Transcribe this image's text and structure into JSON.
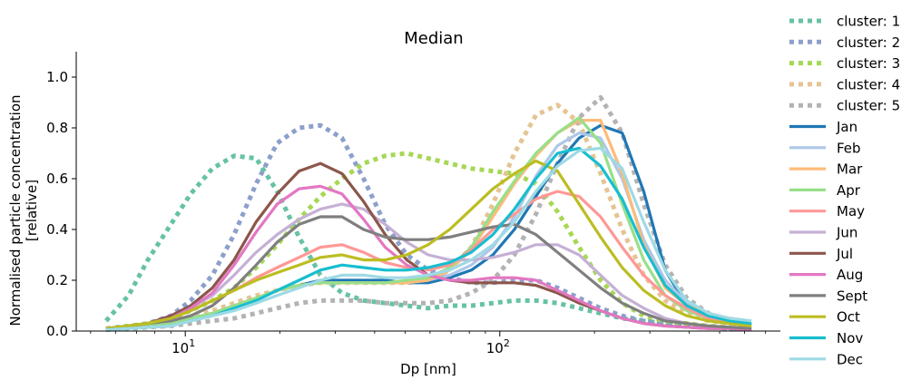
{
  "chart_data": {
    "type": "line",
    "title": "Median",
    "xlabel": "Dp [nm]",
    "ylabel_line1": "Normalised particle concentration",
    "ylabel_line2": "[relative]",
    "xscale": "log",
    "xlim": [
      4.5,
      780
    ],
    "ylim": [
      0,
      1.1
    ],
    "xticks": [
      {
        "value": 10,
        "base": "10",
        "exp": "1"
      },
      {
        "value": 100,
        "base": "10",
        "exp": "2"
      }
    ],
    "yticks": [
      {
        "value": 0.0,
        "label": "0.0"
      },
      {
        "value": 0.2,
        "label": "0.2"
      },
      {
        "value": 0.4,
        "label": "0.4"
      },
      {
        "value": 0.6,
        "label": "0.6"
      },
      {
        "value": 0.8,
        "label": "0.8"
      },
      {
        "value": 1.0,
        "label": "1.0"
      }
    ],
    "legend": {
      "placement": "outside-right"
    },
    "x": [
      5.6,
      6.6,
      7.6,
      9,
      10.4,
      12.2,
      14.3,
      16.8,
      19.6,
      23,
      26.9,
      31.5,
      36.9,
      43.2,
      50.6,
      59.2,
      69.3,
      81.2,
      95.1,
      111.3,
      130.3,
      152.6,
      178.7,
      209.2,
      245,
      286.8,
      335.8,
      393.2,
      460.4,
      539,
      631
    ],
    "series": [
      {
        "name": "cluster: 1",
        "color": "#66c2a5",
        "dotted": true,
        "values": [
          0.04,
          0.14,
          0.28,
          0.42,
          0.54,
          0.64,
          0.69,
          0.68,
          0.55,
          0.37,
          0.22,
          0.15,
          0.12,
          0.11,
          0.1,
          0.09,
          0.1,
          0.1,
          0.11,
          0.12,
          0.12,
          0.11,
          0.09,
          0.07,
          0.05,
          0.04,
          0.03,
          0.02,
          0.015,
          0.01,
          0.01
        ]
      },
      {
        "name": "cluster: 2",
        "color": "#8da0cb",
        "dotted": true,
        "values": [
          0.01,
          0.02,
          0.03,
          0.06,
          0.12,
          0.22,
          0.38,
          0.58,
          0.74,
          0.8,
          0.81,
          0.76,
          0.6,
          0.42,
          0.3,
          0.24,
          0.21,
          0.19,
          0.19,
          0.2,
          0.2,
          0.17,
          0.13,
          0.09,
          0.06,
          0.04,
          0.03,
          0.02,
          0.015,
          0.01,
          0.01
        ]
      },
      {
        "name": "cluster: 3",
        "color": "#a6d854",
        "dotted": true,
        "values": [
          0.01,
          0.02,
          0.03,
          0.05,
          0.08,
          0.12,
          0.17,
          0.25,
          0.34,
          0.44,
          0.53,
          0.6,
          0.66,
          0.69,
          0.7,
          0.68,
          0.66,
          0.64,
          0.63,
          0.62,
          0.58,
          0.47,
          0.33,
          0.2,
          0.11,
          0.06,
          0.04,
          0.03,
          0.02,
          0.015,
          0.01
        ]
      },
      {
        "name": "cluster: 4",
        "color": "#e5c494",
        "dotted": true,
        "values": [
          0.01,
          0.015,
          0.02,
          0.03,
          0.05,
          0.08,
          0.11,
          0.14,
          0.16,
          0.18,
          0.19,
          0.19,
          0.19,
          0.19,
          0.19,
          0.2,
          0.24,
          0.33,
          0.5,
          0.7,
          0.85,
          0.89,
          0.82,
          0.62,
          0.4,
          0.22,
          0.12,
          0.07,
          0.04,
          0.03,
          0.02
        ]
      },
      {
        "name": "cluster: 5",
        "color": "#b3b3b3",
        "dotted": true,
        "values": [
          0.005,
          0.01,
          0.015,
          0.02,
          0.03,
          0.04,
          0.05,
          0.07,
          0.09,
          0.11,
          0.12,
          0.12,
          0.12,
          0.11,
          0.11,
          0.11,
          0.12,
          0.15,
          0.2,
          0.3,
          0.46,
          0.66,
          0.84,
          0.92,
          0.78,
          0.5,
          0.26,
          0.13,
          0.07,
          0.04,
          0.02
        ]
      },
      {
        "name": "Jan",
        "color": "#1f77b4",
        "dotted": false,
        "values": [
          0.01,
          0.015,
          0.02,
          0.03,
          0.05,
          0.07,
          0.1,
          0.13,
          0.16,
          0.18,
          0.2,
          0.2,
          0.2,
          0.2,
          0.19,
          0.19,
          0.21,
          0.24,
          0.3,
          0.4,
          0.53,
          0.66,
          0.76,
          0.81,
          0.78,
          0.55,
          0.24,
          0.1,
          0.06,
          0.04,
          0.03
        ]
      },
      {
        "name": "Feb",
        "color": "#aec7e8",
        "dotted": false,
        "values": [
          0.01,
          0.015,
          0.02,
          0.03,
          0.05,
          0.07,
          0.1,
          0.13,
          0.16,
          0.18,
          0.19,
          0.19,
          0.19,
          0.19,
          0.19,
          0.2,
          0.22,
          0.26,
          0.33,
          0.45,
          0.61,
          0.73,
          0.78,
          0.76,
          0.6,
          0.36,
          0.2,
          0.11,
          0.07,
          0.05,
          0.04
        ]
      },
      {
        "name": "Mar",
        "color": "#ffbb78",
        "dotted": false,
        "values": [
          0.01,
          0.015,
          0.02,
          0.03,
          0.05,
          0.07,
          0.1,
          0.13,
          0.16,
          0.18,
          0.19,
          0.19,
          0.19,
          0.19,
          0.19,
          0.2,
          0.24,
          0.32,
          0.45,
          0.58,
          0.69,
          0.78,
          0.83,
          0.83,
          0.62,
          0.34,
          0.17,
          0.1,
          0.07,
          0.05,
          0.03
        ]
      },
      {
        "name": "Apr",
        "color": "#98df8a",
        "dotted": false,
        "values": [
          0.01,
          0.015,
          0.02,
          0.03,
          0.05,
          0.07,
          0.1,
          0.13,
          0.16,
          0.18,
          0.19,
          0.19,
          0.19,
          0.19,
          0.2,
          0.21,
          0.25,
          0.33,
          0.47,
          0.59,
          0.7,
          0.78,
          0.84,
          0.74,
          0.5,
          0.28,
          0.14,
          0.08,
          0.05,
          0.03,
          0.02
        ]
      },
      {
        "name": "May",
        "color": "#ff9896",
        "dotted": false,
        "values": [
          0.01,
          0.02,
          0.03,
          0.05,
          0.08,
          0.12,
          0.16,
          0.21,
          0.25,
          0.29,
          0.33,
          0.34,
          0.31,
          0.27,
          0.25,
          0.24,
          0.26,
          0.32,
          0.4,
          0.46,
          0.52,
          0.55,
          0.53,
          0.45,
          0.33,
          0.22,
          0.14,
          0.09,
          0.05,
          0.03,
          0.02
        ]
      },
      {
        "name": "Jun",
        "color": "#c5b0d5",
        "dotted": false,
        "values": [
          0.01,
          0.02,
          0.03,
          0.05,
          0.09,
          0.14,
          0.22,
          0.31,
          0.38,
          0.44,
          0.48,
          0.5,
          0.48,
          0.42,
          0.35,
          0.3,
          0.28,
          0.28,
          0.29,
          0.31,
          0.34,
          0.34,
          0.3,
          0.22,
          0.14,
          0.09,
          0.05,
          0.03,
          0.02,
          0.015,
          0.01
        ]
      },
      {
        "name": "Jul",
        "color": "#8c564b",
        "dotted": false,
        "values": [
          0.01,
          0.02,
          0.03,
          0.06,
          0.1,
          0.17,
          0.28,
          0.43,
          0.54,
          0.63,
          0.66,
          0.62,
          0.51,
          0.38,
          0.28,
          0.22,
          0.2,
          0.19,
          0.19,
          0.19,
          0.18,
          0.15,
          0.11,
          0.08,
          0.05,
          0.03,
          0.02,
          0.015,
          0.01,
          0.01,
          0.005
        ]
      },
      {
        "name": "Aug",
        "color": "#e377c2",
        "dotted": false,
        "values": [
          0.01,
          0.02,
          0.03,
          0.05,
          0.09,
          0.15,
          0.26,
          0.39,
          0.5,
          0.56,
          0.57,
          0.54,
          0.44,
          0.33,
          0.26,
          0.22,
          0.2,
          0.2,
          0.21,
          0.21,
          0.2,
          0.16,
          0.12,
          0.08,
          0.05,
          0.03,
          0.02,
          0.015,
          0.01,
          0.01,
          0.005
        ]
      },
      {
        "name": "Sept",
        "color": "#7f7f7f",
        "dotted": false,
        "values": [
          0.01,
          0.02,
          0.03,
          0.04,
          0.06,
          0.1,
          0.17,
          0.26,
          0.35,
          0.42,
          0.45,
          0.45,
          0.4,
          0.37,
          0.36,
          0.36,
          0.37,
          0.39,
          0.41,
          0.42,
          0.38,
          0.31,
          0.24,
          0.17,
          0.11,
          0.07,
          0.04,
          0.03,
          0.02,
          0.015,
          0.01
        ]
      },
      {
        "name": "Oct",
        "color": "#bcbd22",
        "dotted": false,
        "values": [
          0.01,
          0.02,
          0.03,
          0.05,
          0.08,
          0.12,
          0.16,
          0.2,
          0.23,
          0.26,
          0.29,
          0.3,
          0.28,
          0.28,
          0.3,
          0.34,
          0.4,
          0.48,
          0.56,
          0.62,
          0.67,
          0.63,
          0.5,
          0.37,
          0.25,
          0.16,
          0.1,
          0.06,
          0.04,
          0.03,
          0.02
        ]
      },
      {
        "name": "Nov",
        "color": "#17becf",
        "dotted": false,
        "values": [
          0.005,
          0.01,
          0.015,
          0.02,
          0.04,
          0.06,
          0.09,
          0.12,
          0.16,
          0.2,
          0.24,
          0.26,
          0.25,
          0.24,
          0.24,
          0.25,
          0.27,
          0.31,
          0.38,
          0.48,
          0.6,
          0.7,
          0.72,
          0.65,
          0.52,
          0.33,
          0.18,
          0.1,
          0.06,
          0.04,
          0.03
        ]
      },
      {
        "name": "Dec",
        "color": "#9edae5",
        "dotted": false,
        "values": [
          0.005,
          0.01,
          0.015,
          0.02,
          0.04,
          0.06,
          0.08,
          0.11,
          0.14,
          0.17,
          0.2,
          0.22,
          0.22,
          0.21,
          0.21,
          0.22,
          0.24,
          0.28,
          0.34,
          0.43,
          0.55,
          0.65,
          0.71,
          0.72,
          0.64,
          0.43,
          0.24,
          0.12,
          0.07,
          0.05,
          0.04
        ]
      }
    ]
  }
}
